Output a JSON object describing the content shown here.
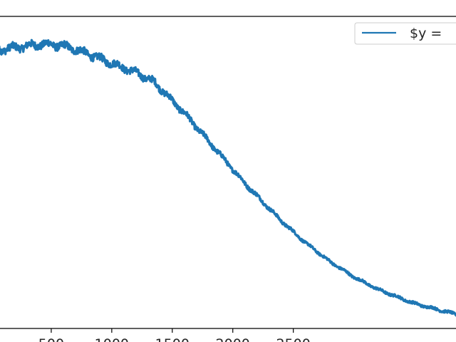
{
  "chart_data": {
    "type": "line",
    "title": "",
    "xlabel": "",
    "ylabel": "",
    "xlim": [
      -100,
      3850
    ],
    "ylim": [
      0,
      1
    ],
    "x_ticks": [
      500,
      1000,
      1500,
      2000,
      2500
    ],
    "x_tick_labels": [
      "500",
      "1000",
      "1500",
      "2000",
      "2500"
    ],
    "grid": false,
    "legend_position": "top-right",
    "series": [
      {
        "name": "$y =",
        "color": "#1f77b4",
        "noisy": true,
        "x": [
          -100,
          100,
          200,
          300,
          400,
          500,
          600,
          700,
          800,
          900,
          1000,
          1100,
          1200,
          1300,
          1350,
          1400,
          1500,
          1600,
          1700,
          1800,
          1900,
          2000,
          2100,
          2200,
          2300,
          2400,
          2500,
          2600,
          2700,
          2800,
          2900,
          3000,
          3100,
          3200,
          3300,
          3400,
          3500,
          3600,
          3700,
          3800,
          3850
        ],
        "y": [
          0.88,
          0.895,
          0.9,
          0.905,
          0.91,
          0.91,
          0.905,
          0.895,
          0.88,
          0.865,
          0.85,
          0.835,
          0.82,
          0.8,
          0.79,
          0.77,
          0.73,
          0.69,
          0.645,
          0.6,
          0.555,
          0.51,
          0.465,
          0.425,
          0.385,
          0.345,
          0.31,
          0.275,
          0.245,
          0.215,
          0.19,
          0.165,
          0.145,
          0.125,
          0.11,
          0.095,
          0.08,
          0.07,
          0.06,
          0.05,
          0.045
        ]
      }
    ]
  }
}
